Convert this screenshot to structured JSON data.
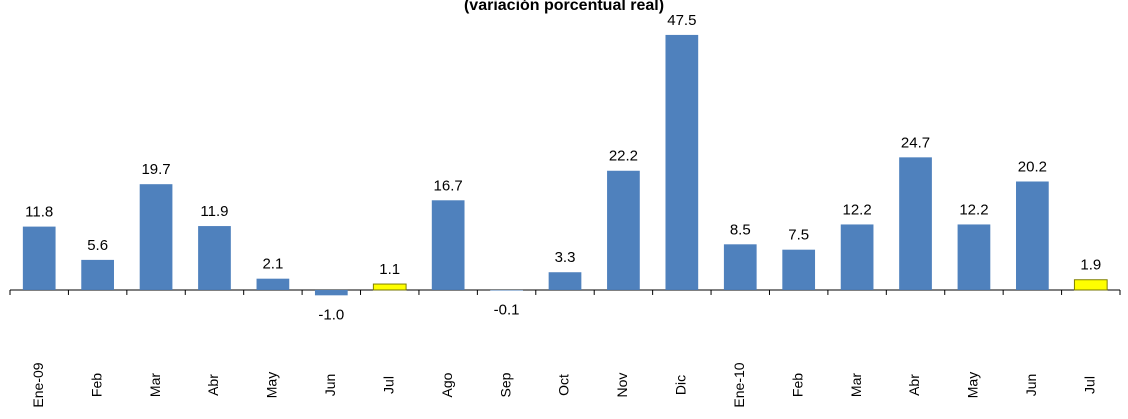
{
  "chart_data": {
    "type": "bar",
    "title": "(variación porcentual real)",
    "categories": [
      "Ene-09",
      "Feb",
      "Mar",
      "Abr",
      "May",
      "Jun",
      "Jul",
      "Ago",
      "Sep",
      "Oct",
      "Nov",
      "Dic",
      "Ene-10",
      "Feb",
      "Mar",
      "Abr",
      "May",
      "Jun",
      "Jul"
    ],
    "values": [
      11.8,
      5.6,
      19.7,
      11.9,
      2.1,
      -1.0,
      1.1,
      16.7,
      -0.1,
      3.3,
      22.2,
      47.5,
      8.5,
      7.5,
      12.2,
      24.7,
      12.2,
      20.2,
      1.9
    ],
    "value_labels": [
      "11.8",
      "5.6",
      "19.7",
      "11.9",
      "2.1",
      "-1.0",
      "1.1",
      "16.7",
      "-0.1",
      "3.3",
      "22.2",
      "47.5",
      "8.5",
      "7.5",
      "12.2",
      "24.7",
      "12.2",
      "20.2",
      "1.9"
    ],
    "colors": [
      "#4f81bd",
      "#4f81bd",
      "#4f81bd",
      "#4f81bd",
      "#4f81bd",
      "#4f81bd",
      "#ffff00",
      "#4f81bd",
      "#4f81bd",
      "#4f81bd",
      "#4f81bd",
      "#4f81bd",
      "#4f81bd",
      "#4f81bd",
      "#4f81bd",
      "#4f81bd",
      "#4f81bd",
      "#4f81bd",
      "#ffff00"
    ],
    "ylim": [
      -5,
      50
    ],
    "grid": false
  }
}
